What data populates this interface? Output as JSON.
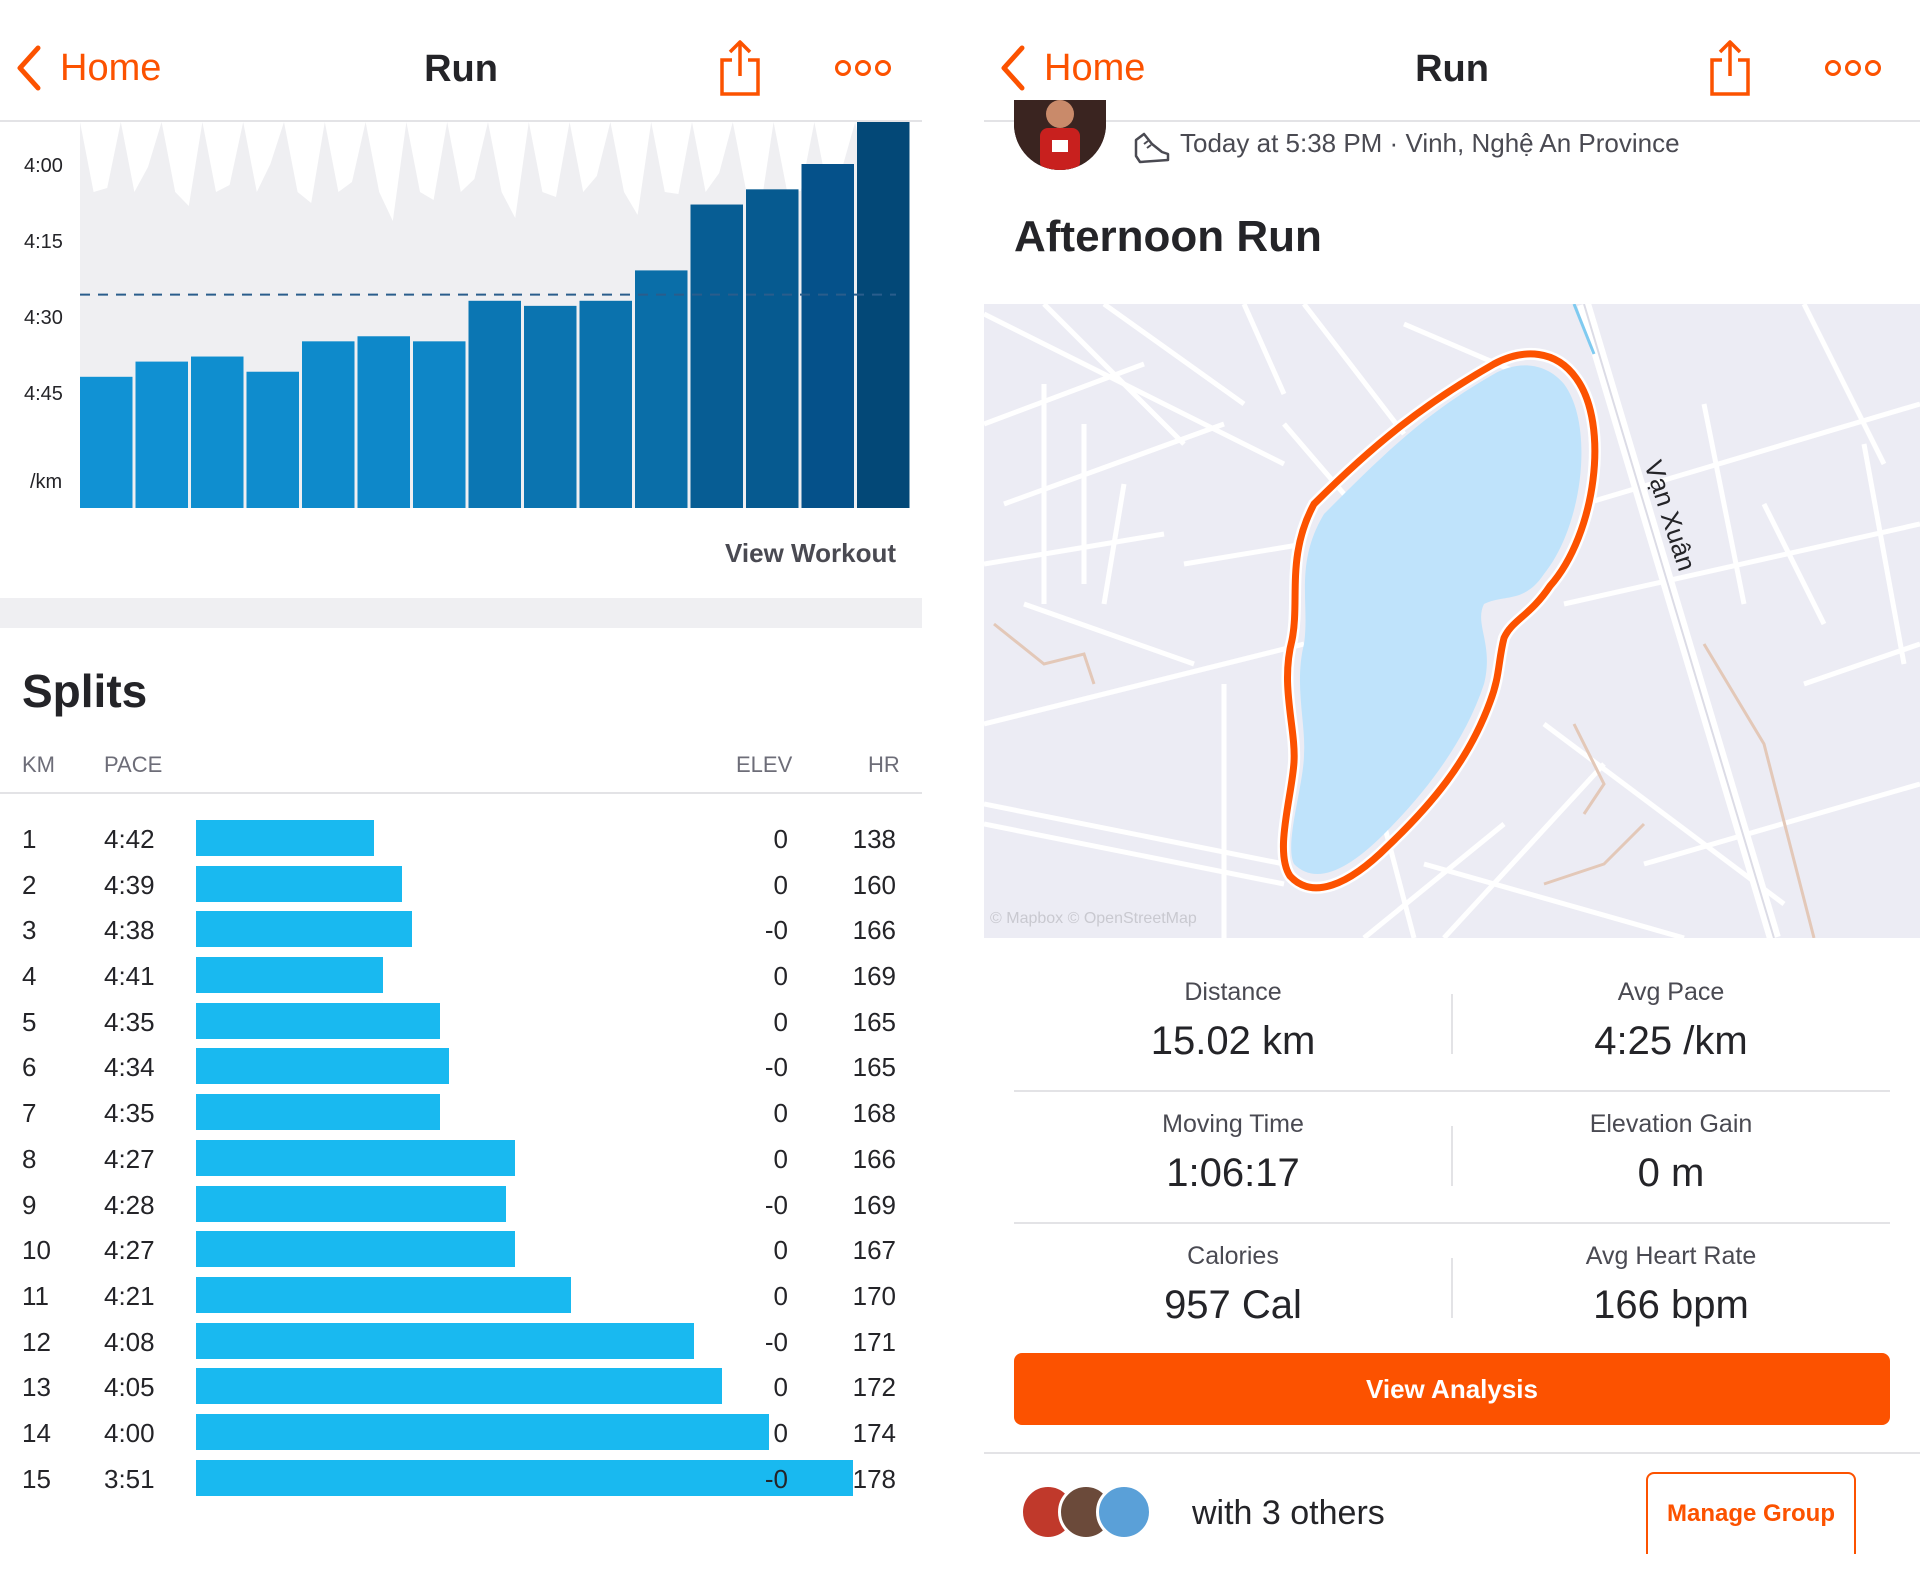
{
  "left": {
    "nav": {
      "back_label": "Home",
      "title": "Run"
    },
    "pace_chart": {
      "y_ticks": [
        "4:00",
        "4:15",
        "4:30",
        "4:45"
      ],
      "unit_label": "/km",
      "view_workout_label": "View Workout"
    },
    "splits": {
      "title": "Splits",
      "headers": {
        "km": "KM",
        "pace": "PACE",
        "elev": "ELEV",
        "hr": "HR"
      },
      "rows": [
        {
          "km": "1",
          "pace": "4:42",
          "elev": "0",
          "hr": "138"
        },
        {
          "km": "2",
          "pace": "4:39",
          "elev": "0",
          "hr": "160"
        },
        {
          "km": "3",
          "pace": "4:38",
          "elev": "-0",
          "hr": "166"
        },
        {
          "km": "4",
          "pace": "4:41",
          "elev": "0",
          "hr": "169"
        },
        {
          "km": "5",
          "pace": "4:35",
          "elev": "0",
          "hr": "165"
        },
        {
          "km": "6",
          "pace": "4:34",
          "elev": "-0",
          "hr": "165"
        },
        {
          "km": "7",
          "pace": "4:35",
          "elev": "0",
          "hr": "168"
        },
        {
          "km": "8",
          "pace": "4:27",
          "elev": "0",
          "hr": "166"
        },
        {
          "km": "9",
          "pace": "4:28",
          "elev": "-0",
          "hr": "169"
        },
        {
          "km": "10",
          "pace": "4:27",
          "elev": "0",
          "hr": "167"
        },
        {
          "km": "11",
          "pace": "4:21",
          "elev": "0",
          "hr": "170"
        },
        {
          "km": "12",
          "pace": "4:08",
          "elev": "-0",
          "hr": "171"
        },
        {
          "km": "13",
          "pace": "4:05",
          "elev": "0",
          "hr": "172"
        },
        {
          "km": "14",
          "pace": "4:00",
          "elev": "0",
          "hr": "174"
        },
        {
          "km": "15",
          "pace": "3:51",
          "elev": "-0",
          "hr": "178"
        }
      ]
    }
  },
  "right": {
    "nav": {
      "back_label": "Home",
      "title": "Run"
    },
    "activity": {
      "meta": "Today at 5:38 PM · Vinh, Nghệ An Province",
      "title": "Afternoon Run"
    },
    "map": {
      "road_label": "Vạn Xuân",
      "credit": "© Mapbox © OpenStreetMap"
    },
    "stats": [
      [
        {
          "label": "Distance",
          "value": "15.02 km"
        },
        {
          "label": "Avg Pace",
          "value": "4:25 /km"
        }
      ],
      [
        {
          "label": "Moving Time",
          "value": "1:06:17"
        },
        {
          "label": "Elevation Gain",
          "value": "0 m"
        }
      ],
      [
        {
          "label": "Calories",
          "value": "957 Cal"
        },
        {
          "label": "Avg Heart Rate",
          "value": "166 bpm"
        }
      ]
    ],
    "view_analysis_label": "View Analysis",
    "group": {
      "with_others": "with 3 others",
      "manage_label": "Manage Group"
    }
  },
  "colors": {
    "accent": "#fc5200",
    "chart_bar": "#0f7fbf",
    "split_bar": "#19b9f0",
    "lake": "#bfe3fb",
    "map_bg": "#ececf4"
  },
  "icons": [
    "chevron-left-icon",
    "share-icon",
    "more-icon",
    "shoe-icon"
  ],
  "chart_data": {
    "type": "bar",
    "categories": [
      "1",
      "2",
      "3",
      "4",
      "5",
      "6",
      "7",
      "8",
      "9",
      "10",
      "11",
      "12",
      "13",
      "14",
      "15"
    ],
    "values": [
      "4:42",
      "4:39",
      "4:38",
      "4:41",
      "4:35",
      "4:34",
      "4:35",
      "4:27",
      "4:28",
      "4:27",
      "4:21",
      "4:08",
      "4:05",
      "4:00",
      "3:51"
    ],
    "values_seconds_per_km": [
      282,
      279,
      278,
      281,
      275,
      274,
      275,
      267,
      268,
      267,
      261,
      248,
      245,
      240,
      231
    ],
    "reference_line": "4:25",
    "ylabel": "/km",
    "y_ticks": [
      "4:00",
      "4:15",
      "4:30",
      "4:45"
    ],
    "y_axis_inverted": true,
    "grid": false
  }
}
